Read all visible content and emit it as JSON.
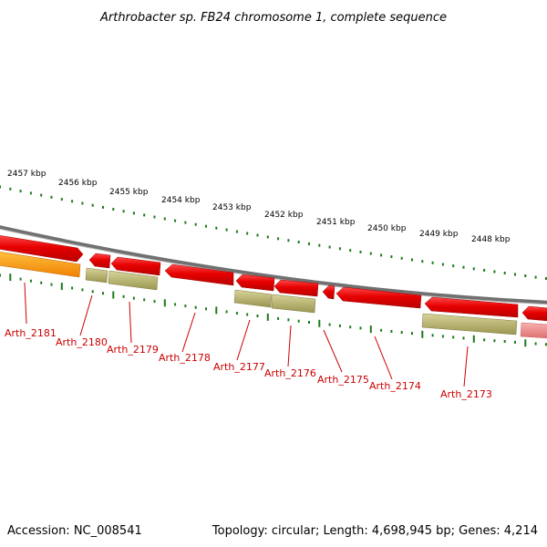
{
  "title": "Arthrobacter sp. FB24 chromosome 1, complete sequence",
  "footer": {
    "accession": "Accession: NC_008541",
    "summary": "Topology: circular; Length: 4,698,945 bp; Genes: 4,214"
  },
  "scale_labels": [
    "2457 kbp",
    "2456 kbp",
    "2455 kbp",
    "2454 kbp",
    "2453 kbp",
    "2452 kbp",
    "2451 kbp",
    "2450 kbp",
    "2449 kbp",
    "2448 kbp"
  ],
  "gene_labels": [
    "Arth_2181",
    "Arth_2180",
    "Arth_2179",
    "Arth_2178",
    "Arth_2177",
    "Arth_2176",
    "Arth_2175",
    "Arth_2174",
    "Arth_2173"
  ],
  "colors": {
    "backbone": "#808080",
    "forward_gene": "#e60000",
    "faded_gene": "#f08080",
    "orange_gene": "#ff9900",
    "khaki_gene": "#b5b06a",
    "tick": "#1a7a1a",
    "label": "#cc0000"
  }
}
